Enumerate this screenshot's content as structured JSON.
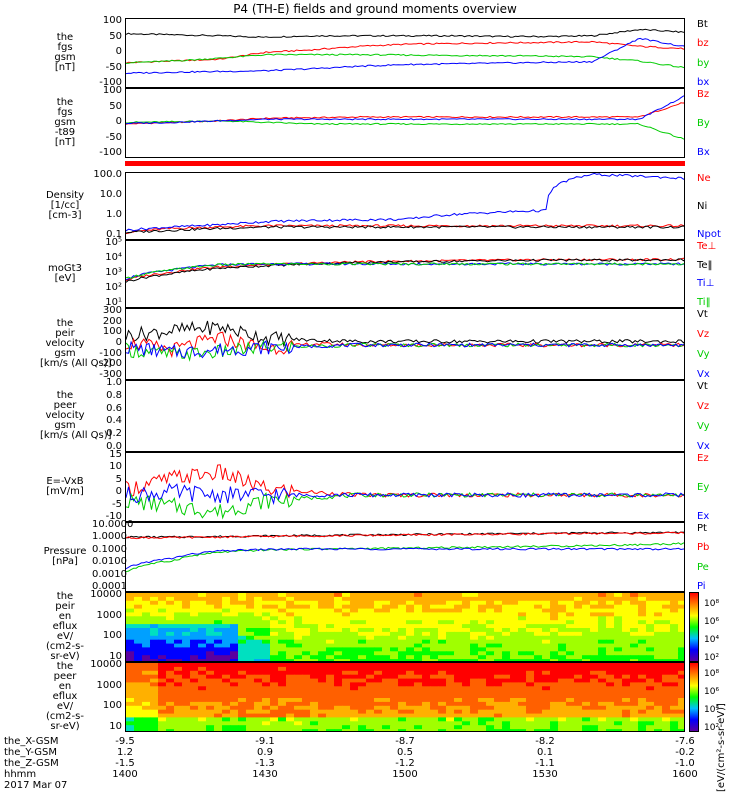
{
  "title": "P4 (TH-E) fields and ground moments overview",
  "chart_data": [
    {
      "type": "line",
      "ylabel_lines": [
        "the",
        "fgs",
        "gsm",
        "[nT]"
      ],
      "yticks": [
        "100",
        "50",
        "0",
        "-50",
        "-100"
      ],
      "ylim": [
        -100,
        100
      ],
      "series": [
        {
          "name": "Bt",
          "color": "#000000",
          "values": [
            58,
            55,
            52,
            48,
            52,
            52,
            52,
            52,
            50,
            50,
            52,
            70,
            62
          ]
        },
        {
          "name": "bz",
          "color": "#ff0000",
          "values": [
            -25,
            -20,
            -15,
            5,
            12,
            22,
            28,
            30,
            32,
            33,
            35,
            22,
            15
          ]
        },
        {
          "name": "by",
          "color": "#00cc00",
          "values": [
            -25,
            -20,
            -12,
            -2,
            -2,
            -2,
            -3,
            -4,
            -5,
            -6,
            -8,
            -20,
            -40
          ]
        },
        {
          "name": "bx",
          "color": "#0000ff",
          "values": [
            -55,
            -52,
            -50,
            -48,
            -42,
            -35,
            -30,
            -28,
            -26,
            -24,
            -22,
            45,
            20
          ]
        }
      ]
    },
    {
      "type": "line",
      "ylabel_lines": [
        "the",
        "fgs",
        "gsm",
        "-t89",
        "[nT]"
      ],
      "yticks": [
        "100",
        "50",
        "0",
        "-50",
        "-100"
      ],
      "ylim": [
        -120,
        100
      ],
      "series": [
        {
          "name": "Bz",
          "color": "#ff0000",
          "values": [
            -10,
            -5,
            0,
            8,
            10,
            12,
            12,
            12,
            12,
            12,
            12,
            12,
            60
          ]
        },
        {
          "name": "By",
          "color": "#00cc00",
          "values": [
            -5,
            -3,
            0,
            -5,
            -10,
            -10,
            -10,
            -10,
            -10,
            -10,
            -10,
            -10,
            -60
          ]
        },
        {
          "name": "Bx",
          "color": "#0000ff",
          "values": [
            -8,
            -5,
            0,
            5,
            5,
            5,
            5,
            5,
            5,
            5,
            5,
            5,
            80
          ]
        }
      ]
    },
    {
      "type": "line",
      "ylabel_lines": [
        "Density",
        "[1/cc]",
        "[cm-3]"
      ],
      "yticks": [
        "100.0",
        "10.0",
        "1.0",
        "0.1"
      ],
      "ylim": [
        0.05,
        300
      ],
      "log": true,
      "series": [
        {
          "name": "Ne",
          "color": "#ff0000",
          "values": [
            0.15,
            0.25,
            0.3,
            0.35,
            0.35,
            0.35,
            0.35,
            0.35,
            0.35,
            0.35,
            0.35,
            0.35,
            0.35
          ]
        },
        {
          "name": "Ni",
          "color": "#000000",
          "values": [
            0.15,
            0.2,
            0.25,
            0.3,
            0.3,
            0.3,
            0.3,
            0.3,
            0.3,
            0.3,
            0.3,
            0.3,
            0.3
          ]
        },
        {
          "name": "Npot",
          "color": "#0000ff",
          "values": [
            0.2,
            0.3,
            0.4,
            0.6,
            0.7,
            0.75,
            0.8,
            1.5,
            2.0,
            2.5,
            250,
            200,
            150
          ]
        }
      ]
    },
    {
      "type": "line",
      "ylabel_lines": [
        "moGt3",
        "[eV]"
      ],
      "yticks": [
        "10⁵",
        "10⁴",
        "10³",
        "10²",
        "10¹"
      ],
      "ylim": [
        10,
        100000
      ],
      "log": true,
      "series": [
        {
          "name": "Te⊥",
          "color": "#ff0000",
          "values": [
            500,
            1500,
            3000,
            4000,
            5000,
            6000,
            6500,
            7000,
            7500,
            8000,
            8000,
            8000,
            8500
          ]
        },
        {
          "name": "Te‖",
          "color": "#000000",
          "values": [
            400,
            1200,
            2500,
            3500,
            4500,
            5500,
            6000,
            6500,
            7000,
            7500,
            7500,
            7500,
            8000
          ]
        },
        {
          "name": "Ti⊥",
          "color": "#0000ff",
          "values": [
            600,
            2000,
            4000,
            4500,
            4500,
            4500,
            4500,
            4500,
            4500,
            4500,
            4500,
            4500,
            4500
          ]
        },
        {
          "name": "Ti‖",
          "color": "#00cc00",
          "values": [
            600,
            2000,
            4000,
            4500,
            4500,
            4500,
            4500,
            4500,
            4500,
            4500,
            4500,
            4500,
            4500
          ]
        }
      ]
    },
    {
      "type": "line",
      "ylabel_lines": [
        "the",
        "peir",
        "velocity",
        "gsm",
        "[km/s (All Qs)]"
      ],
      "yticks": [
        "300",
        "200",
        "100",
        "0",
        "-100",
        "-200",
        "-300"
      ],
      "ylim": [
        -300,
        300
      ],
      "series": [
        {
          "name": "Vt",
          "color": "#000000",
          "values": [
            80,
            120,
            150,
            60,
            40,
            30,
            30,
            30,
            30,
            30,
            30,
            30,
            30
          ]
        },
        {
          "name": "Vz",
          "color": "#ff0000",
          "values": [
            20,
            -40,
            60,
            -30,
            10,
            0,
            0,
            0,
            0,
            0,
            0,
            0,
            0
          ]
        },
        {
          "name": "Vy",
          "color": "#00cc00",
          "values": [
            -40,
            -80,
            -60,
            -20,
            -10,
            0,
            0,
            0,
            0,
            0,
            0,
            0,
            0
          ]
        },
        {
          "name": "Vx",
          "color": "#0000ff",
          "values": [
            -20,
            -60,
            -40,
            -20,
            -10,
            0,
            0,
            0,
            0,
            0,
            0,
            0,
            0
          ]
        }
      ]
    },
    {
      "type": "line",
      "ylabel_lines": [
        "the",
        "peer",
        "velocity",
        "gsm",
        "[km/s (All Qs)]"
      ],
      "yticks": [
        "1.0",
        "0.8",
        "0.6",
        "0.4",
        "0.2",
        "0.0"
      ],
      "ylim": [
        0,
        1
      ],
      "series": [
        {
          "name": "Vt",
          "color": "#000000",
          "values": []
        },
        {
          "name": "Vz",
          "color": "#ff0000",
          "values": []
        },
        {
          "name": "Vy",
          "color": "#00cc00",
          "values": []
        },
        {
          "name": "Vx",
          "color": "#0000ff",
          "values": []
        }
      ]
    },
    {
      "type": "line",
      "ylabel_lines": [
        "E=-VxB",
        "[mV/m]"
      ],
      "yticks": [
        "15",
        "10",
        "5",
        "0",
        "-5",
        "-10"
      ],
      "ylim": [
        -10,
        15
      ],
      "series": [
        {
          "name": "Ez",
          "color": "#ff0000",
          "values": [
            2,
            6,
            8,
            2,
            1,
            0,
            0,
            0,
            0,
            0,
            0,
            0,
            0
          ]
        },
        {
          "name": "Ey",
          "color": "#00cc00",
          "values": [
            -2,
            -4,
            -6,
            -2,
            -1,
            0,
            0,
            0,
            0,
            0,
            0,
            0,
            0
          ]
        },
        {
          "name": "Ex",
          "color": "#0000ff",
          "values": [
            0,
            1,
            0,
            0,
            0,
            0,
            0,
            0,
            0,
            0,
            0,
            0,
            0
          ]
        }
      ]
    },
    {
      "type": "line",
      "ylabel_lines": [
        "Pressure",
        "[nPa]"
      ],
      "yticks": [
        "10.0000",
        "1.0000",
        "0.1000",
        "0.0100",
        "0.0010",
        "0.0001"
      ],
      "ylim": [
        0.0001,
        10
      ],
      "log": true,
      "series": [
        {
          "name": "Pt",
          "color": "#000000",
          "values": [
            1.0,
            1.0,
            1.1,
            1.2,
            1.3,
            1.4,
            1.5,
            1.6,
            1.7,
            1.8,
            2.0,
            2.0,
            2.2
          ]
        },
        {
          "name": "Pb",
          "color": "#ff0000",
          "values": [
            0.9,
            0.9,
            1.0,
            1.1,
            1.2,
            1.3,
            1.4,
            1.5,
            1.6,
            1.7,
            1.8,
            1.8,
            2.0
          ]
        },
        {
          "name": "Pe",
          "color": "#00cc00",
          "values": [
            0.003,
            0.02,
            0.08,
            0.12,
            0.14,
            0.15,
            0.16,
            0.18,
            0.2,
            0.22,
            0.25,
            0.28,
            0.35
          ]
        },
        {
          "name": "Pi",
          "color": "#0000ff",
          "values": [
            0.005,
            0.03,
            0.1,
            0.13,
            0.14,
            0.14,
            0.14,
            0.14,
            0.14,
            0.14,
            0.14,
            0.14,
            0.14
          ]
        }
      ]
    },
    {
      "type": "heatmap",
      "ylabel_lines": [
        "the",
        "peir",
        "en",
        "eflux",
        "eV/",
        "(cm2-s-",
        "sr-eV)"
      ],
      "yticks": [
        "10000",
        "1000",
        "100",
        "10"
      ],
      "colorbar_ticks": [
        "10⁸",
        "10⁶",
        "10⁴",
        "10²"
      ]
    },
    {
      "type": "heatmap",
      "ylabel_lines": [
        "the",
        "peer",
        "en",
        "eflux",
        "eV/",
        "(cm2-s-",
        "sr-eV)"
      ],
      "yticks": [
        "10000",
        "1000",
        "100",
        "10"
      ],
      "colorbar_ticks": [
        "10⁸",
        "10⁶",
        "10⁴",
        "10²"
      ]
    }
  ],
  "colorbar_title": "[eV/(cm²-s-sr-eV)]",
  "x_axis": {
    "row_labels": [
      "the_X-GSM",
      "the_Y-GSM",
      "the_Z-GSM",
      "hhmm",
      "2017 Mar 07"
    ],
    "ticks": [
      {
        "x": "-9.5",
        "y": "1.2",
        "z": "-1.5",
        "t": "1400"
      },
      {
        "x": "-9.1",
        "y": "0.9",
        "z": "-1.3",
        "t": "1430"
      },
      {
        "x": "-8.7",
        "y": "0.5",
        "z": "-1.2",
        "t": "1500"
      },
      {
        "x": "-8.2",
        "y": "0.1",
        "z": "-1.1",
        "t": "1530"
      },
      {
        "x": "-7.6",
        "y": "-0.2",
        "z": "-1.0",
        "t": "1600"
      }
    ]
  }
}
